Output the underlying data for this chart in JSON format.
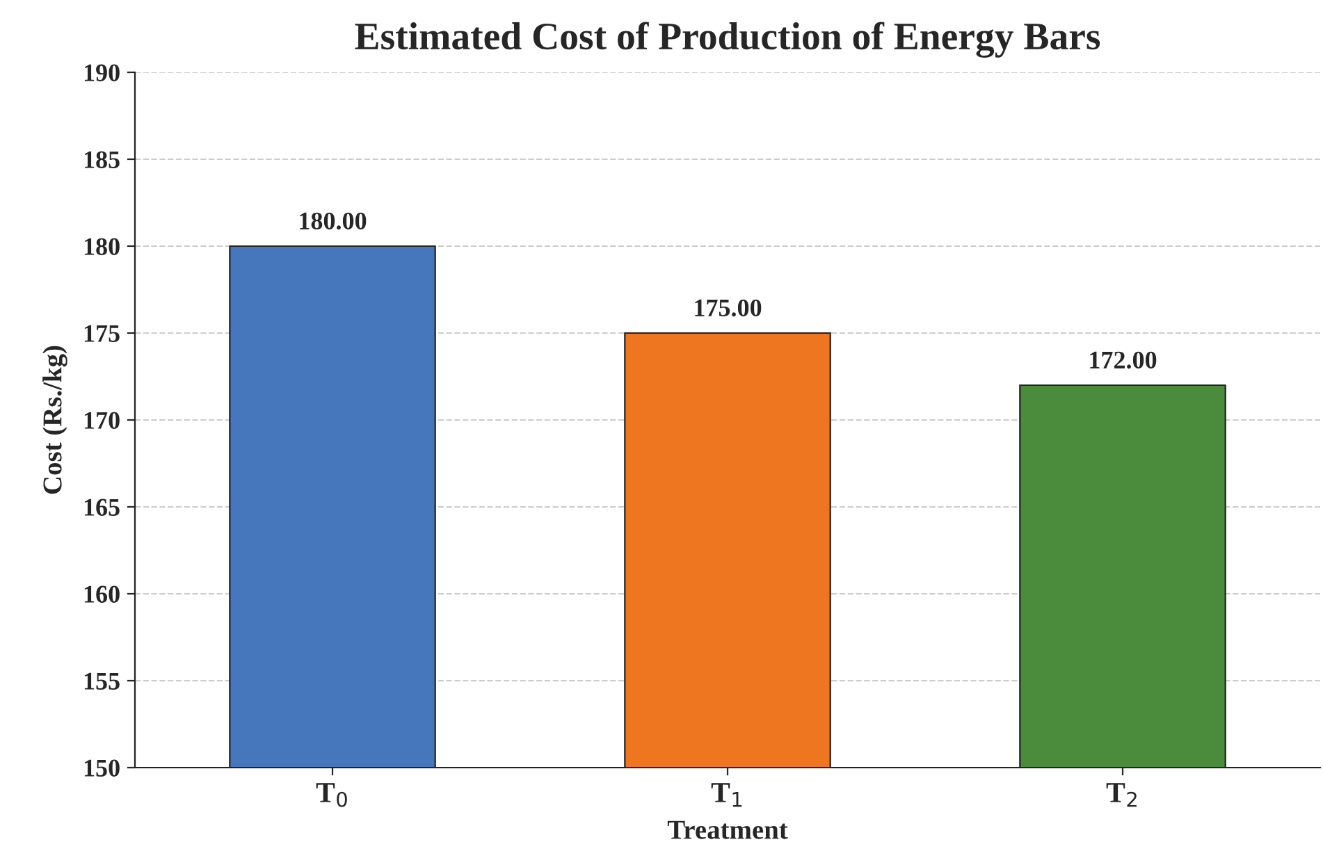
{
  "chart_data": {
    "type": "bar",
    "title": "Estimated Cost of Production of Energy Bars",
    "xlabel": "Treatment",
    "ylabel": "Cost (Rs./kg)",
    "categories": [
      "T$_{0}$",
      "T$_{1}$",
      "T$_{2}$"
    ],
    "values": [
      180,
      175,
      172
    ],
    "colors": [
      "#4677bd",
      "#ef7621",
      "#4a8c3c"
    ],
    "value_labels": [
      "180.00",
      "175.00",
      "172.00"
    ],
    "ylim": [
      150,
      190
    ],
    "yticks": [
      150,
      155,
      160,
      165,
      170,
      175,
      180,
      185,
      190
    ],
    "grid": "y"
  }
}
